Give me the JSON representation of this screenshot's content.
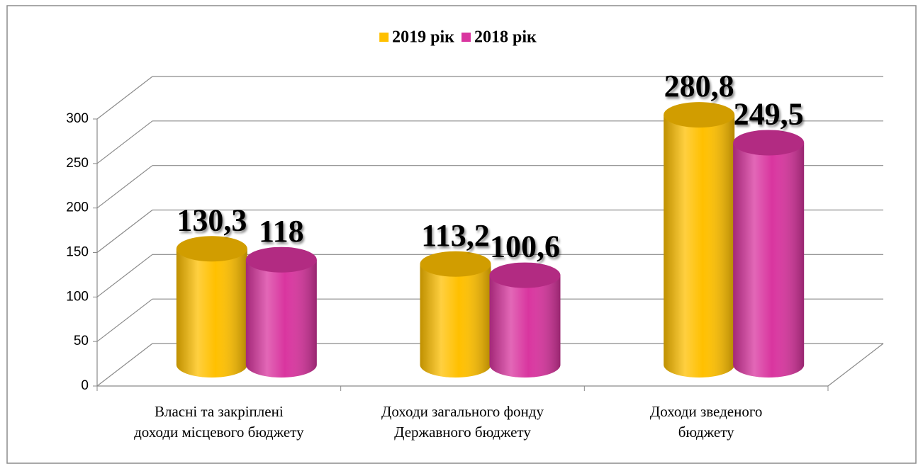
{
  "chart_data": {
    "type": "bar3d",
    "categories": [
      [
        "Власні та закріплені",
        "доходи місцевого бюджету"
      ],
      [
        "Доходи загального фонду",
        "Державного бюджету"
      ],
      [
        "Доходи зведеного",
        "бюджету"
      ]
    ],
    "series": [
      {
        "name": "2019 рік",
        "color": "#ffc000",
        "values": [
          130.3,
          113.2,
          280.8
        ],
        "value_labels": [
          "130,3",
          "113,2",
          "280,8"
        ]
      },
      {
        "name": "2018 рік",
        "color": "#d9359f",
        "values": [
          118,
          100.6,
          249.5
        ],
        "value_labels": [
          "118",
          "100,6",
          "249,5"
        ]
      }
    ],
    "ylim": [
      0,
      300
    ],
    "yticks": [
      0,
      50,
      100,
      150,
      200,
      250,
      300
    ],
    "grid": true,
    "legend": "top"
  }
}
